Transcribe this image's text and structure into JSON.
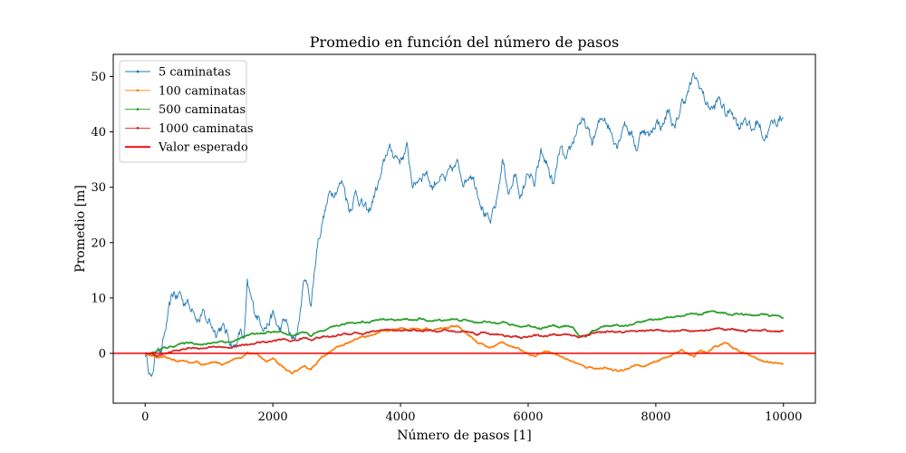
{
  "chart_data": {
    "type": "line",
    "title": "Promedio en función del número de pasos",
    "xlabel": "Número de pasos [1]",
    "ylabel": "Promedio [m]",
    "xlim": [
      -500,
      10500
    ],
    "ylim": [
      -9,
      54
    ],
    "xticks": [
      0,
      2000,
      4000,
      6000,
      8000,
      10000
    ],
    "yticks": [
      0,
      10,
      20,
      30,
      40,
      50
    ],
    "legend_position": "top-left",
    "series": [
      {
        "name": "5 caminatas",
        "color": "#1f77b4",
        "style": "noisy",
        "x": [
          0,
          50,
          100,
          150,
          200,
          250,
          300,
          350,
          400,
          450,
          500,
          550,
          600,
          650,
          700,
          750,
          800,
          850,
          900,
          950,
          1000,
          1100,
          1200,
          1300,
          1400,
          1500,
          1550,
          1600,
          1650,
          1700,
          1800,
          1900,
          2000,
          2100,
          2200,
          2300,
          2350,
          2400,
          2500,
          2600,
          2700,
          2800,
          2900,
          3000,
          3100,
          3200,
          3300,
          3400,
          3500,
          3600,
          3700,
          3800,
          3900,
          4000,
          4100,
          4200,
          4300,
          4400,
          4500,
          4600,
          4700,
          4800,
          4900,
          5000,
          5100,
          5200,
          5300,
          5400,
          5500,
          5600,
          5700,
          5800,
          5900,
          6000,
          6100,
          6200,
          6300,
          6400,
          6500,
          6600,
          6700,
          6800,
          6900,
          7000,
          7100,
          7200,
          7300,
          7400,
          7500,
          7600,
          7700,
          7800,
          7900,
          8000,
          8100,
          8200,
          8300,
          8400,
          8500,
          8600,
          8700,
          8800,
          8900,
          9000,
          9100,
          9200,
          9300,
          9400,
          9500,
          9600,
          9700,
          9800,
          9900,
          10000
        ],
        "y": [
          0,
          -2,
          -5,
          -1,
          2,
          0,
          3,
          6,
          9,
          11,
          10,
          11,
          9,
          10,
          8,
          9,
          7,
          6,
          8,
          5,
          6,
          4,
          5,
          3,
          1,
          4,
          2,
          12,
          10,
          8,
          6,
          5,
          7,
          4,
          6,
          2,
          3,
          5,
          14,
          9,
          20,
          25,
          29,
          30,
          31,
          26,
          29,
          27,
          25,
          29,
          32,
          37,
          36,
          35,
          37,
          30,
          32,
          33,
          30,
          32,
          31,
          33,
          34,
          31,
          33,
          30,
          26,
          23,
          27,
          35,
          29,
          32,
          28,
          33,
          30,
          36,
          34,
          30,
          37,
          34,
          38,
          42,
          41,
          38,
          41,
          43,
          40,
          38,
          42,
          40,
          37,
          41,
          39,
          42,
          41,
          44,
          40,
          45,
          47,
          50,
          48,
          45,
          44,
          46,
          43,
          44,
          41,
          43,
          40,
          42,
          39,
          41,
          42,
          43
        ]
      },
      {
        "name": "100 caminatas",
        "color": "#ff7f0e",
        "style": "smooth",
        "x": [
          0,
          100,
          200,
          300,
          400,
          500,
          600,
          700,
          800,
          900,
          1000,
          1100,
          1200,
          1300,
          1400,
          1500,
          1600,
          1700,
          1800,
          1900,
          2000,
          2100,
          2200,
          2300,
          2400,
          2500,
          2600,
          2700,
          2800,
          2900,
          3000,
          3100,
          3200,
          3300,
          3400,
          3500,
          3600,
          3700,
          3800,
          3900,
          4000,
          4100,
          4200,
          4300,
          4400,
          4500,
          4600,
          4700,
          4800,
          4900,
          5000,
          5100,
          5200,
          5300,
          5400,
          5500,
          5600,
          5700,
          5800,
          5900,
          6000,
          6100,
          6200,
          6300,
          6400,
          6500,
          6600,
          6700,
          6800,
          6900,
          7000,
          7100,
          7200,
          7300,
          7400,
          7500,
          7600,
          7700,
          7800,
          7900,
          8000,
          8100,
          8200,
          8300,
          8400,
          8500,
          8600,
          8700,
          8800,
          8900,
          9000,
          9100,
          9200,
          9300,
          9400,
          9500,
          9600,
          9700,
          9800,
          9900,
          10000
        ],
        "y": [
          0,
          -0.5,
          -0.8,
          -0.5,
          -1,
          -1.5,
          -1.2,
          -1.8,
          -1.5,
          -2,
          -1.8,
          -1.5,
          -2,
          -1.5,
          -1,
          -1,
          0,
          0,
          -0.5,
          -1.5,
          -1,
          -2,
          -3,
          -3.5,
          -3,
          -2.5,
          -2.8,
          -1.5,
          -0.5,
          0.5,
          1,
          1.5,
          2,
          2.5,
          3,
          3,
          3.5,
          4,
          4,
          4.2,
          4.5,
          4.3,
          4.5,
          4.2,
          4.5,
          4,
          4.5,
          4.5,
          4.8,
          5,
          4,
          3,
          2,
          1.5,
          1,
          1.5,
          2,
          1.5,
          1,
          0.5,
          0,
          -0.5,
          0,
          0.5,
          0,
          -0.5,
          -1,
          -1.5,
          -2,
          -2.5,
          -2.5,
          -2.8,
          -2.5,
          -3,
          -3.2,
          -3,
          -2.5,
          -2,
          -2.5,
          -2,
          -1.5,
          -1,
          -0.5,
          0,
          0.5,
          0,
          -0.5,
          0.5,
          0,
          1,
          1.5,
          2,
          1,
          0.5,
          0,
          -0.5,
          -1,
          -1.5,
          -1.5,
          -1.8,
          -2
        ]
      },
      {
        "name": "500 caminatas",
        "color": "#2ca02c",
        "style": "smooth",
        "x": [
          0,
          100,
          200,
          300,
          400,
          500,
          600,
          700,
          800,
          900,
          1000,
          1100,
          1200,
          1300,
          1400,
          1500,
          1600,
          1700,
          1800,
          1900,
          2000,
          2100,
          2200,
          2300,
          2400,
          2500,
          2600,
          2700,
          2800,
          2900,
          3000,
          3100,
          3200,
          3300,
          3400,
          3500,
          3600,
          3700,
          3800,
          3900,
          4000,
          4100,
          4200,
          4300,
          4400,
          4500,
          4600,
          4700,
          4800,
          4900,
          5000,
          5100,
          5200,
          5300,
          5400,
          5500,
          5600,
          5700,
          5800,
          5900,
          6000,
          6100,
          6200,
          6300,
          6400,
          6500,
          6600,
          6700,
          6800,
          6900,
          7000,
          7100,
          7200,
          7300,
          7400,
          7500,
          7600,
          7700,
          7800,
          7900,
          8000,
          8100,
          8200,
          8300,
          8400,
          8500,
          8600,
          8700,
          8800,
          8900,
          9000,
          9100,
          9200,
          9300,
          9400,
          9500,
          9600,
          9700,
          9800,
          9900,
          10000
        ],
        "y": [
          0,
          0,
          0.5,
          1,
          1.2,
          1.5,
          1.8,
          2,
          1.8,
          1.5,
          1.8,
          2,
          2.2,
          2,
          2.2,
          2.8,
          3.2,
          3.5,
          3.5,
          3.8,
          3.8,
          4,
          3.5,
          3.2,
          3.5,
          3.8,
          3.2,
          3.8,
          4,
          4.5,
          5,
          5.2,
          5.5,
          5.5,
          5.8,
          5.5,
          6,
          6.2,
          6.2,
          6,
          6,
          6.2,
          6,
          6.2,
          6,
          5.8,
          6,
          6,
          6.2,
          6,
          6,
          5.8,
          5.5,
          5.8,
          5.5,
          5.5,
          5.8,
          5.2,
          5,
          4.8,
          5,
          4.8,
          4.5,
          4.8,
          5,
          4.8,
          5,
          4.5,
          3.2,
          3,
          4,
          4.5,
          5,
          5,
          5.2,
          4.8,
          5.2,
          5.5,
          5.8,
          6,
          6,
          6.2,
          6.5,
          6.5,
          6.8,
          7,
          7.2,
          7,
          7.5,
          7.5,
          7.5,
          7.2,
          7,
          7.2,
          7,
          6.8,
          7,
          7,
          6.8,
          6.8,
          6.5
        ]
      },
      {
        "name": "1000 caminatas",
        "color": "#d62728",
        "style": "smooth",
        "x": [
          0,
          100,
          200,
          300,
          400,
          500,
          600,
          700,
          800,
          900,
          1000,
          1100,
          1200,
          1300,
          1400,
          1500,
          1600,
          1700,
          1800,
          1900,
          2000,
          2100,
          2200,
          2300,
          2400,
          2500,
          2600,
          2700,
          2800,
          2900,
          3000,
          3100,
          3200,
          3300,
          3400,
          3500,
          3600,
          3700,
          3800,
          3900,
          4000,
          4100,
          4200,
          4300,
          4400,
          4500,
          4600,
          4700,
          4800,
          4900,
          5000,
          5100,
          5200,
          5300,
          5400,
          5500,
          5600,
          5700,
          5800,
          5900,
          6000,
          6100,
          6200,
          6300,
          6400,
          6500,
          6600,
          6700,
          6800,
          6900,
          7000,
          7100,
          7200,
          7300,
          7400,
          7500,
          7600,
          7700,
          7800,
          7900,
          8000,
          8100,
          8200,
          8300,
          8400,
          8500,
          8600,
          8700,
          8800,
          8900,
          9000,
          9100,
          9200,
          9300,
          9400,
          9500,
          9600,
          9700,
          9800,
          9900,
          10000
        ],
        "y": [
          0,
          -0.3,
          -0.5,
          0,
          0.3,
          0.5,
          0.8,
          1,
          1,
          0.8,
          1,
          1.2,
          1.2,
          1,
          1.2,
          1.5,
          1.5,
          1.8,
          2,
          2,
          2.2,
          2.5,
          2.5,
          2.2,
          2.5,
          2.8,
          2.5,
          2.8,
          3,
          3,
          3.2,
          3.5,
          3.5,
          3.8,
          3.5,
          3.8,
          4,
          4.2,
          4.2,
          4,
          4,
          4.2,
          4.2,
          4,
          4.2,
          4.2,
          4,
          4.2,
          4,
          3.8,
          4,
          3.8,
          3.5,
          3.8,
          3.5,
          3.5,
          3.2,
          3,
          3,
          2.8,
          3,
          3.2,
          3.2,
          3,
          3.5,
          3.2,
          3.5,
          3.2,
          3,
          3.2,
          3.5,
          3.8,
          3.8,
          4,
          3.8,
          3.8,
          4,
          3.8,
          4,
          4.2,
          4.2,
          4,
          4.2,
          4,
          4.2,
          4.2,
          4,
          4.2,
          4.2,
          4.5,
          4.5,
          4.2,
          4.5,
          4.2,
          4,
          4.2,
          4,
          4.2,
          4,
          4,
          4
        ]
      },
      {
        "name": "Valor esperado",
        "color": "#ff0000",
        "style": "reference",
        "x": [
          -500,
          10500
        ],
        "y": [
          0,
          0
        ]
      }
    ]
  }
}
